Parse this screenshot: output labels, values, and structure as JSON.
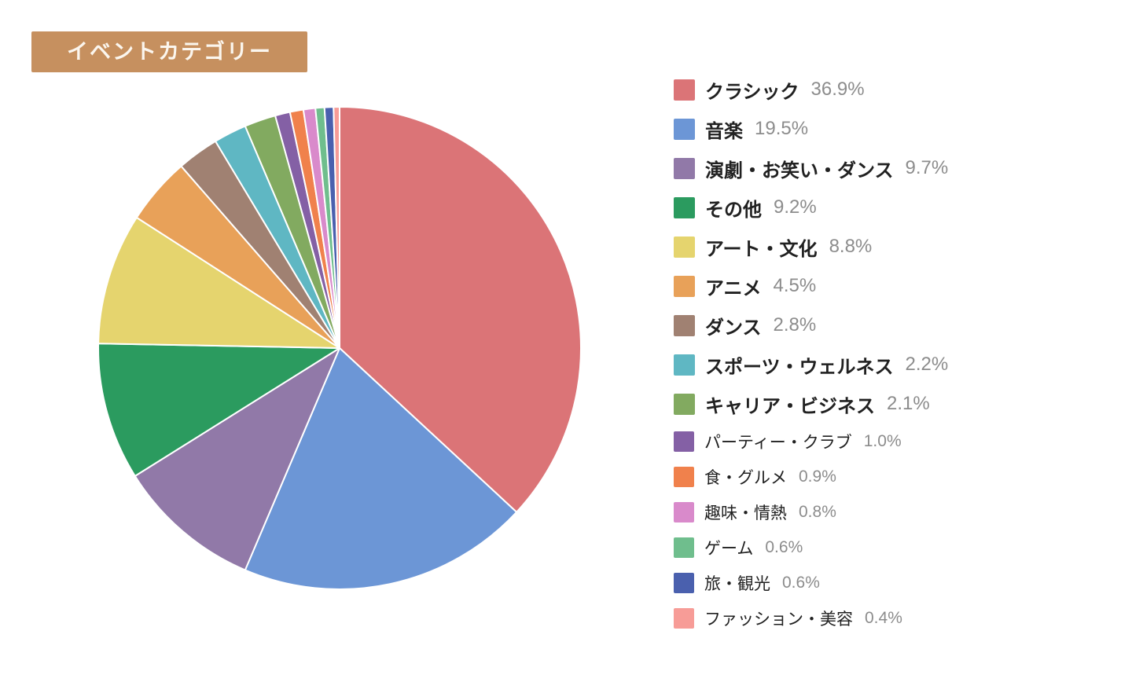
{
  "title": {
    "label": "イベントカテゴリー",
    "background_color": "#C6905F",
    "text_color": "#FBF6EE"
  },
  "chart_data": {
    "type": "pie",
    "title": "イベントカテゴリー",
    "start_angle_deg": 0,
    "direction": "clockwise",
    "legend_position": "right",
    "slice_border_color": "#FFFFFF",
    "categories": [
      "クラシック",
      "音楽",
      "演劇・お笑い・ダンス",
      "その他",
      "アート・文化",
      "アニメ",
      "ダンス",
      "スポーツ・ウェルネス",
      "キャリア・ビジネス",
      "パーティー・クラブ",
      "食・グルメ",
      "趣味・情熱",
      "ゲーム",
      "旅・観光",
      "ファッション・美容"
    ],
    "values": [
      36.9,
      19.5,
      9.7,
      9.2,
      8.8,
      4.5,
      2.8,
      2.2,
      2.1,
      1.0,
      0.9,
      0.8,
      0.6,
      0.6,
      0.4
    ],
    "percent_labels": [
      "36.9%",
      "19.5%",
      "9.7%",
      "9.2%",
      "8.8%",
      "4.5%",
      "2.8%",
      "2.2%",
      "2.1%",
      "1.0%",
      "0.9%",
      "0.8%",
      "0.6%",
      "0.6%",
      "0.4%"
    ],
    "colors": [
      "#DB7477",
      "#6C96D6",
      "#9179A8",
      "#2B9B5F",
      "#E5D46E",
      "#E8A159",
      "#A08172",
      "#5FB7C3",
      "#82AA60",
      "#8460A5",
      "#F0814C",
      "#D98ACB",
      "#6FBE8D",
      "#4A60AE",
      "#F79C97"
    ]
  }
}
